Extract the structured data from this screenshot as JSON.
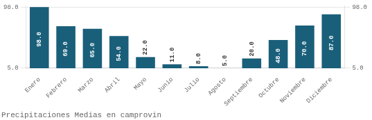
{
  "chart_data": {
    "type": "bar",
    "title": "Precipitaciones Medias en camprovin",
    "categories": [
      "Enero",
      "Febrero",
      "Marzo",
      "Abril",
      "Mayo",
      "Junio",
      "Julio",
      "Agosto",
      "Septiembre",
      "Octubre",
      "Noviembre",
      "Diciembre"
    ],
    "values": [
      98.0,
      69.0,
      65.0,
      54.0,
      22.0,
      11.0,
      8.0,
      5.0,
      20.0,
      48.0,
      70.0,
      87.0
    ],
    "value_labels": [
      "98.0",
      "69.0",
      "65.0",
      "54.0",
      "22.0",
      "11.0",
      "8.0",
      "5.0",
      "20.0",
      "48.0",
      "70.0",
      "87.0"
    ],
    "data_labels": true,
    "color": "#1a5f7a",
    "ylim": [
      5.0,
      100.0
    ],
    "yticks": [
      {
        "value": 5.0,
        "label": "5.0"
      },
      {
        "value": 98.0,
        "label": "98.0"
      }
    ],
    "y2lim": [
      5.0,
      100.0
    ],
    "y2ticks": [
      {
        "value": 5.0,
        "label": "5.0"
      },
      {
        "value": 98.0,
        "label": "98.0"
      }
    ],
    "grid": true
  }
}
